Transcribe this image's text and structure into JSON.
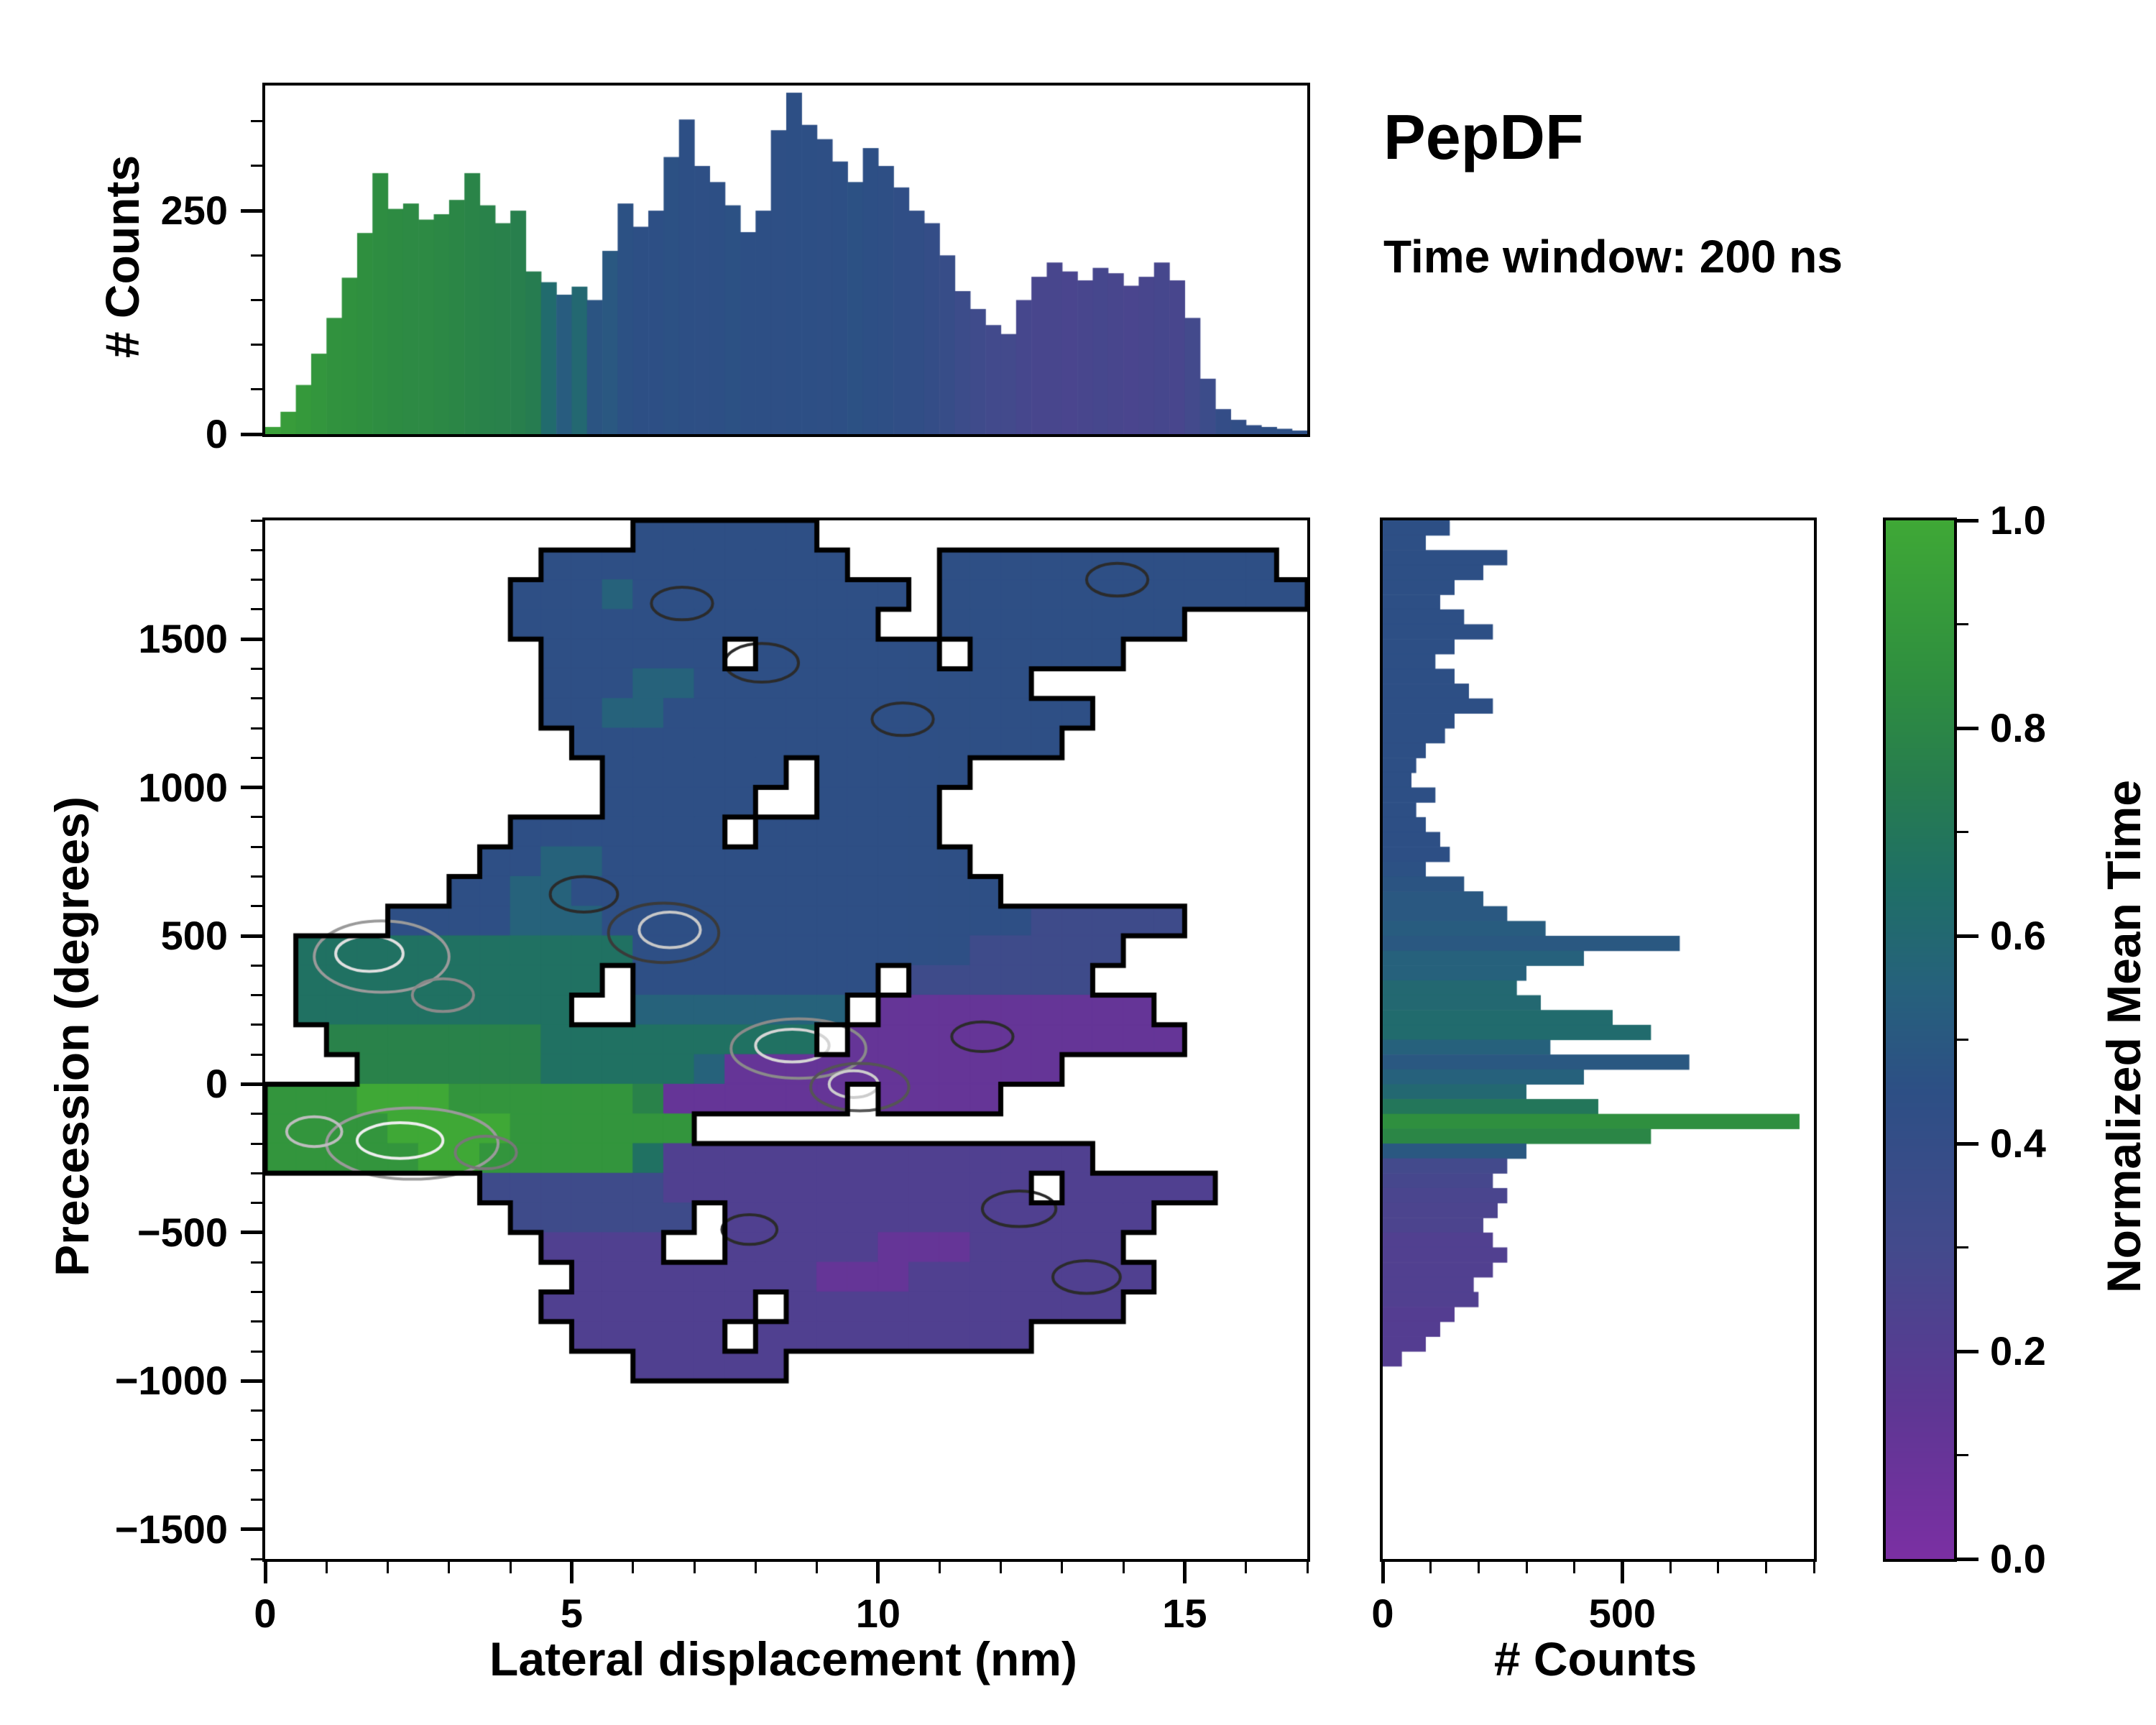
{
  "header": {
    "title": "PepDF",
    "subtitle": "Time window: 200 ns"
  },
  "colormap": {
    "label": "Normalized Mean Time",
    "stops": [
      {
        "t": 0.0,
        "c": "#7b2fa3"
      },
      {
        "t": 0.15,
        "c": "#5d3793"
      },
      {
        "t": 0.3,
        "c": "#434a8c"
      },
      {
        "t": 0.45,
        "c": "#2d4f85"
      },
      {
        "t": 0.55,
        "c": "#26617c"
      },
      {
        "t": 0.65,
        "c": "#1f6f66"
      },
      {
        "t": 0.75,
        "c": "#277d4e"
      },
      {
        "t": 0.85,
        "c": "#2f8f3f"
      },
      {
        "t": 1.0,
        "c": "#3fa836"
      }
    ],
    "ticks": [
      {
        "v": 0.0,
        "label": "0.0"
      },
      {
        "v": 0.2,
        "label": "0.2"
      },
      {
        "v": 0.4,
        "label": "0.4"
      },
      {
        "v": 0.6,
        "label": "0.6"
      },
      {
        "v": 0.8,
        "label": "0.8"
      },
      {
        "v": 1.0,
        "label": "1.0"
      }
    ],
    "minor_step": 0.1
  },
  "axes": {
    "top_hist": {
      "ylabel": "# Counts",
      "ylim": [
        0,
        390
      ],
      "yticks": [
        {
          "v": 0,
          "label": "0"
        },
        {
          "v": 250,
          "label": "250"
        }
      ],
      "y_minor_step": 50
    },
    "main": {
      "xlabel": "Lateral displacement (nm)",
      "ylabel": "Precession (degrees)",
      "xlim": [
        0,
        17
      ],
      "ylim": [
        -1600,
        1900
      ],
      "xticks": [
        {
          "v": 0,
          "label": "0"
        },
        {
          "v": 5,
          "label": "5"
        },
        {
          "v": 10,
          "label": "10"
        },
        {
          "v": 15,
          "label": "15"
        }
      ],
      "x_minor_step": 1,
      "yticks": [
        {
          "v": -1500,
          "label": "−1500"
        },
        {
          "v": -1000,
          "label": "−1000"
        },
        {
          "v": -500,
          "label": "−500"
        },
        {
          "v": 0,
          "label": "0"
        },
        {
          "v": 500,
          "label": "500"
        },
        {
          "v": 1000,
          "label": "1000"
        },
        {
          "v": 1500,
          "label": "1500"
        }
      ],
      "y_minor_step": 100
    },
    "right_hist": {
      "xlabel": "# Counts",
      "xlim": [
        0,
        900
      ],
      "xticks": [
        {
          "v": 0,
          "label": "0"
        },
        {
          "v": 500,
          "label": "500"
        }
      ],
      "x_minor_step": 100
    }
  },
  "chart_data": [
    {
      "name": "top-histogram",
      "type": "bar",
      "xlabel_shared": "Lateral displacement (nm)",
      "ylabel": "# Counts",
      "bin_start": 0,
      "bin_width": 0.25,
      "xlim": [
        0,
        17
      ],
      "ylim": [
        0,
        390
      ],
      "counts": [
        8,
        25,
        55,
        90,
        130,
        175,
        225,
        292,
        252,
        258,
        240,
        246,
        262,
        292,
        256,
        236,
        250,
        182,
        170,
        156,
        165,
        150,
        205,
        258,
        232,
        250,
        310,
        352,
        300,
        282,
        256,
        226,
        250,
        340,
        382,
        346,
        330,
        305,
        282,
        320,
        300,
        276,
        250,
        236,
        200,
        160,
        140,
        122,
        112,
        150,
        176,
        192,
        182,
        172,
        186,
        180,
        166,
        176,
        192,
        172,
        130,
        62,
        28,
        16,
        10,
        8,
        6,
        4
      ],
      "mean_time": [
        0.95,
        0.93,
        0.91,
        0.89,
        0.87,
        0.86,
        0.85,
        0.84,
        0.83,
        0.82,
        0.82,
        0.81,
        0.8,
        0.79,
        0.78,
        0.77,
        0.76,
        0.74,
        0.62,
        0.52,
        0.6,
        0.48,
        0.5,
        0.46,
        0.45,
        0.45,
        0.46,
        0.45,
        0.44,
        0.45,
        0.46,
        0.45,
        0.45,
        0.44,
        0.45,
        0.45,
        0.44,
        0.45,
        0.46,
        0.45,
        0.44,
        0.43,
        0.42,
        0.4,
        0.38,
        0.35,
        0.33,
        0.31,
        0.3,
        0.28,
        0.27,
        0.27,
        0.26,
        0.27,
        0.28,
        0.27,
        0.26,
        0.27,
        0.28,
        0.27,
        0.3,
        0.35,
        0.4,
        0.42,
        0.43,
        0.44,
        0.45,
        0.45
      ]
    },
    {
      "name": "joint-density-map",
      "type": "heatmap",
      "xlabel": "Lateral displacement (nm)",
      "ylabel": "Precession (degrees)",
      "x0": 0,
      "dx": 0.5,
      "y_top": 1900,
      "dy": 100,
      "value_encoding": "char digit / 9 = normalized mean time, '.' = empty",
      "rows": [
        "............444444................",
        ".........4444444444...44444444444.",
        "........4445444444444.444444444444",
        "........444444444444..44444444....",
        ".........444444.444444.44444......",
        ".........4445544444444444.........",
        ".........445544444444444444.......",
        "..........4444444444444444........",
        "...........444444.44444...........",
        "...........44444..4444............",
        "........4444444.444444............",
        ".......4455444444444444...........",
        "......445544444444444444..........",
        "....44445554444444444444433333....",
        ".666666666664444444444433333......",
        ".6666666666.44444444.333333.......",
        ".666666666..5555555.111111111.....",
        "..7777777666666666.11111111111....",
        "...77777766666511111111111........",
        "8889998888887111111.1111..........",
        "88889999888888....................",
        "888889988888622222222222222.......",
        ".......333333222222222222.22222...",
        "........333333.22222222222222.....",
        ".........2222..2222211122222......",
        "..........2222222211122222222.....",
        ".........2222222.22222222222......",
        "..........22222.222222222.........",
        "............22222.................",
        "..................................",
        "..................................",
        "..................................",
        "..................................",
        "..................................",
        ".................................."
      ],
      "contour_ellipses": [
        {
          "x": 1.9,
          "y": 430,
          "rx": 1.1,
          "ry": 120,
          "color": "#9a9a9a"
        },
        {
          "x": 1.7,
          "y": 440,
          "rx": 0.55,
          "ry": 60,
          "color": "#e0e0e0"
        },
        {
          "x": 2.9,
          "y": 300,
          "rx": 0.5,
          "ry": 55,
          "color": "#8a8a8a"
        },
        {
          "x": 2.4,
          "y": -200,
          "rx": 1.4,
          "ry": 120,
          "color": "#9a9a9a"
        },
        {
          "x": 2.2,
          "y": -190,
          "rx": 0.7,
          "ry": 60,
          "color": "#eeeeee"
        },
        {
          "x": 0.8,
          "y": -160,
          "rx": 0.45,
          "ry": 50,
          "color": "#bdbdbd"
        },
        {
          "x": 3.6,
          "y": -230,
          "rx": 0.5,
          "ry": 55,
          "color": "#777777"
        },
        {
          "x": 8.7,
          "y": 120,
          "rx": 1.1,
          "ry": 100,
          "color": "#8a8a8a"
        },
        {
          "x": 8.6,
          "y": 130,
          "rx": 0.6,
          "ry": 55,
          "color": "#d5d5d5"
        },
        {
          "x": 9.7,
          "y": -10,
          "rx": 0.8,
          "ry": 80,
          "color": "#555555"
        },
        {
          "x": 9.6,
          "y": 0,
          "rx": 0.4,
          "ry": 45,
          "color": "#cccccc"
        },
        {
          "x": 6.6,
          "y": 520,
          "rx": 0.5,
          "ry": 60,
          "color": "#c8c8c8"
        },
        {
          "x": 6.5,
          "y": 510,
          "rx": 0.9,
          "ry": 100,
          "color": "#3a3a3a"
        },
        {
          "x": 5.2,
          "y": 640,
          "rx": 0.55,
          "ry": 60,
          "color": "#2b2b2b"
        },
        {
          "x": 12.3,
          "y": -420,
          "rx": 0.6,
          "ry": 60,
          "color": "#2b2b2b"
        },
        {
          "x": 13.4,
          "y": -650,
          "rx": 0.55,
          "ry": 55,
          "color": "#2b2b2b"
        },
        {
          "x": 7.9,
          "y": -490,
          "rx": 0.45,
          "ry": 50,
          "color": "#2b2b2b"
        },
        {
          "x": 11.7,
          "y": 160,
          "rx": 0.5,
          "ry": 50,
          "color": "#2b2b2b"
        },
        {
          "x": 13.9,
          "y": 1700,
          "rx": 0.5,
          "ry": 55,
          "color": "#2b2b2b"
        },
        {
          "x": 8.1,
          "y": 1420,
          "rx": 0.6,
          "ry": 65,
          "color": "#2b2b2b"
        },
        {
          "x": 10.4,
          "y": 1230,
          "rx": 0.5,
          "ry": 55,
          "color": "#2b2b2b"
        },
        {
          "x": 6.8,
          "y": 1620,
          "rx": 0.5,
          "ry": 55,
          "color": "#2b2b2b"
        }
      ]
    },
    {
      "name": "right-histogram",
      "type": "bar",
      "orientation": "horizontal",
      "xlabel": "# Counts",
      "bin_top": 1900,
      "bin_height": 50,
      "xlim": [
        0,
        900
      ],
      "counts": [
        140,
        90,
        260,
        210,
        150,
        120,
        170,
        230,
        150,
        110,
        150,
        180,
        230,
        150,
        130,
        90,
        70,
        60,
        110,
        70,
        90,
        120,
        140,
        90,
        170,
        210,
        260,
        340,
        620,
        420,
        300,
        280,
        330,
        480,
        560,
        350,
        640,
        420,
        300,
        450,
        870,
        560,
        300,
        260,
        230,
        260,
        240,
        210,
        230,
        260,
        230,
        190,
        200,
        150,
        120,
        90,
        40,
        0,
        0,
        0,
        0,
        0,
        0,
        0,
        0,
        0,
        0,
        0,
        0,
        0
      ],
      "mean_time": [
        0.45,
        0.45,
        0.45,
        0.45,
        0.45,
        0.45,
        0.45,
        0.45,
        0.45,
        0.45,
        0.45,
        0.45,
        0.45,
        0.45,
        0.45,
        0.45,
        0.45,
        0.45,
        0.45,
        0.45,
        0.45,
        0.45,
        0.45,
        0.46,
        0.48,
        0.5,
        0.5,
        0.52,
        0.5,
        0.55,
        0.55,
        0.6,
        0.6,
        0.62,
        0.62,
        0.55,
        0.5,
        0.55,
        0.6,
        0.7,
        0.85,
        0.8,
        0.5,
        0.3,
        0.28,
        0.26,
        0.25,
        0.25,
        0.22,
        0.22,
        0.22,
        0.22,
        0.22,
        0.2,
        0.2,
        0.2,
        0.2,
        0,
        0,
        0,
        0,
        0,
        0,
        0,
        0,
        0,
        0,
        0,
        0,
        0
      ]
    },
    {
      "name": "colorbar",
      "type": "gradient",
      "label": "Normalized Mean Time",
      "range": [
        0,
        1
      ]
    }
  ]
}
